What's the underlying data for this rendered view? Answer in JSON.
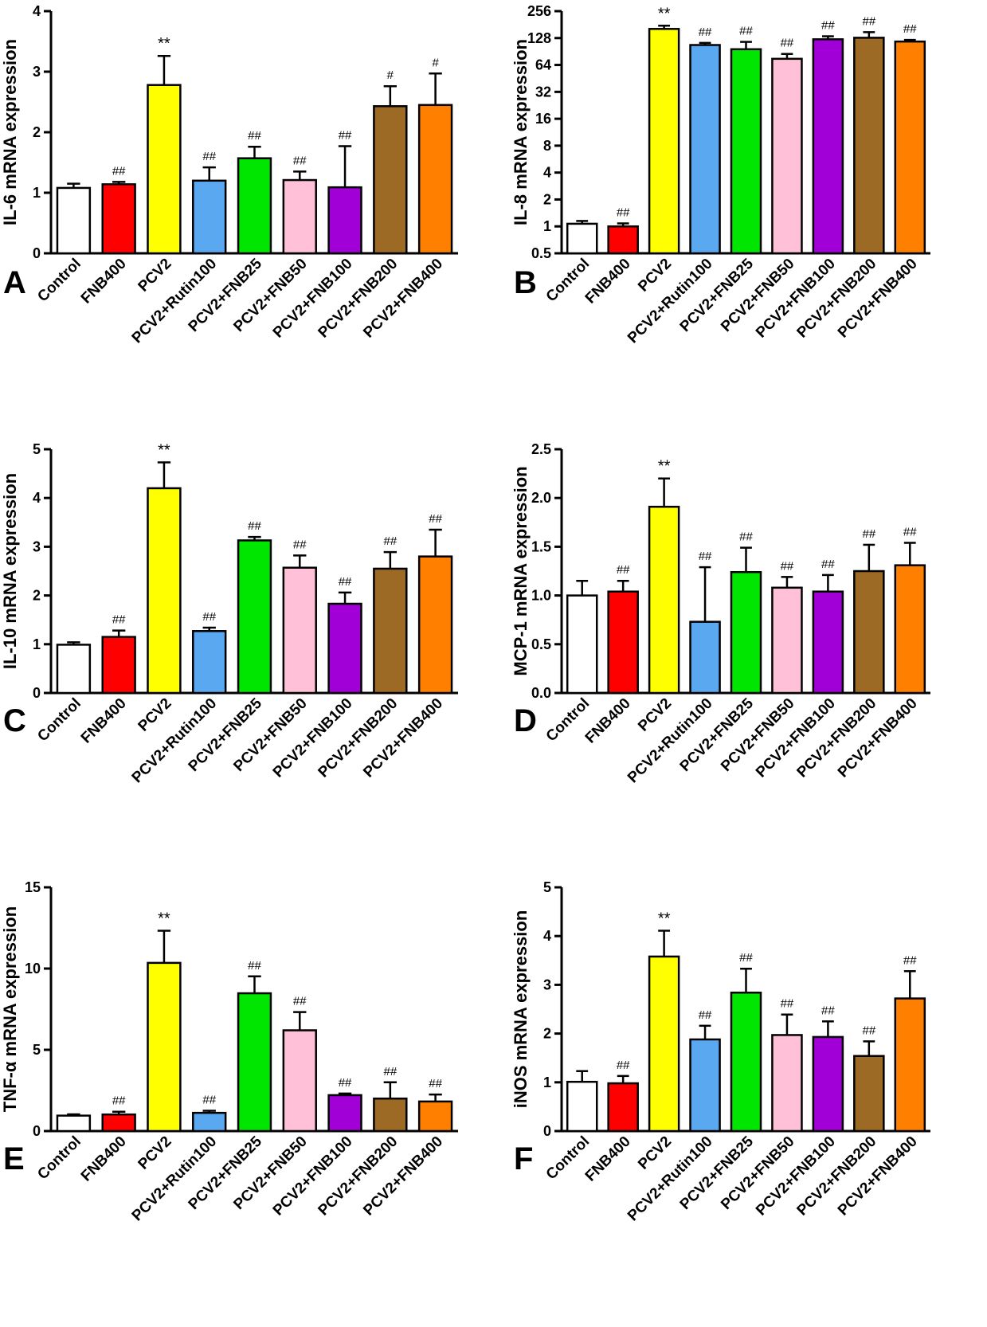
{
  "chart_data": [
    {
      "panel": "A",
      "type": "bar",
      "ylabel": "IL-6 mRNA expression",
      "scale": "linear",
      "ylim": [
        0,
        4
      ],
      "yticks": [
        "0",
        "1",
        "2",
        "3",
        "4"
      ],
      "categories": [
        "Control",
        "FNB400",
        "PCV2",
        "PCV2+Rutin100",
        "PCV2+FNB25",
        "PCV2+FNB50",
        "PCV2+FNB100",
        "PCV2+FNB200",
        "PCV2+FNB400"
      ],
      "values": [
        1.08,
        1.14,
        2.78,
        1.2,
        1.57,
        1.21,
        1.09,
        2.43,
        2.45
      ],
      "errors": [
        0.07,
        0.04,
        0.48,
        0.22,
        0.19,
        0.14,
        0.68,
        0.33,
        0.52
      ],
      "significance": [
        "",
        "##",
        "**",
        "##",
        "##",
        "##",
        "##",
        "#",
        "#"
      ],
      "colors": [
        "#ffffff",
        "#ff0000",
        "#ffff00",
        "#5aa9f0",
        "#00e600",
        "#ffc0d8",
        "#a100d6",
        "#9c6a24",
        "#ff8000"
      ]
    },
    {
      "panel": "B",
      "type": "bar",
      "ylabel": "IL-8 mRNA expression",
      "scale": "log2",
      "ylim": [
        0.5,
        256
      ],
      "yticks": [
        "0.5",
        "1",
        "2",
        "4",
        "8",
        "16",
        "32",
        "64",
        "128",
        "256"
      ],
      "categories": [
        "Control",
        "FNB400",
        "PCV2",
        "PCV2+Rutin100",
        "PCV2+FNB25",
        "PCV2+FNB50",
        "PCV2+FNB100",
        "PCV2+FNB200",
        "PCV2+FNB400"
      ],
      "values": [
        1.07,
        1.0,
        162,
        107,
        96,
        75,
        124,
        129,
        117
      ],
      "errors": [
        0.08,
        0.08,
        14,
        6,
        20,
        10,
        10,
        20,
        5
      ],
      "significance": [
        "",
        "##",
        "**",
        "##",
        "##",
        "##",
        "##",
        "##",
        "##"
      ],
      "colors": [
        "#ffffff",
        "#ff0000",
        "#ffff00",
        "#5aa9f0",
        "#00e600",
        "#ffc0d8",
        "#a100d6",
        "#9c6a24",
        "#ff8000"
      ]
    },
    {
      "panel": "C",
      "type": "bar",
      "ylabel": "IL-10 mRNA expression",
      "scale": "linear",
      "ylim": [
        0,
        5
      ],
      "yticks": [
        "0",
        "1",
        "2",
        "3",
        "4",
        "5"
      ],
      "categories": [
        "Control",
        "FNB400",
        "PCV2",
        "PCV2+Rutin100",
        "PCV2+FNB25",
        "PCV2+FNB50",
        "PCV2+FNB100",
        "PCV2+FNB200",
        "PCV2+FNB400"
      ],
      "values": [
        0.99,
        1.15,
        4.2,
        1.27,
        3.13,
        2.57,
        1.83,
        2.55,
        2.8
      ],
      "errors": [
        0.05,
        0.13,
        0.53,
        0.07,
        0.07,
        0.25,
        0.23,
        0.34,
        0.55
      ],
      "significance": [
        "",
        "##",
        "**",
        "##",
        "##",
        "##",
        "##",
        "##",
        "##"
      ],
      "colors": [
        "#ffffff",
        "#ff0000",
        "#ffff00",
        "#5aa9f0",
        "#00e600",
        "#ffc0d8",
        "#a100d6",
        "#9c6a24",
        "#ff8000"
      ]
    },
    {
      "panel": "D",
      "type": "bar",
      "ylabel": "MCP-1 mRNA expression",
      "scale": "linear",
      "ylim": [
        0,
        2.5
      ],
      "yticks": [
        "0.0",
        "0.5",
        "1.0",
        "1.5",
        "2.0",
        "2.5"
      ],
      "categories": [
        "Control",
        "FNB400",
        "PCV2",
        "PCV2+Rutin100",
        "PCV2+FNB25",
        "PCV2+FNB50",
        "PCV2+FNB100",
        "PCV2+FNB200",
        "PCV2+FNB400"
      ],
      "values": [
        1.0,
        1.04,
        1.91,
        0.73,
        1.24,
        1.08,
        1.04,
        1.25,
        1.31
      ],
      "errors": [
        0.15,
        0.11,
        0.29,
        0.56,
        0.25,
        0.11,
        0.17,
        0.27,
        0.23
      ],
      "significance": [
        "",
        "##",
        "**",
        "##",
        "##",
        "##",
        "##",
        "##",
        "##"
      ],
      "colors": [
        "#ffffff",
        "#ff0000",
        "#ffff00",
        "#5aa9f0",
        "#00e600",
        "#ffc0d8",
        "#a100d6",
        "#9c6a24",
        "#ff8000"
      ]
    },
    {
      "panel": "E",
      "type": "bar",
      "ylabel": "TNF-α mRNA expression",
      "scale": "linear",
      "ylim": [
        0,
        15
      ],
      "yticks": [
        "0",
        "5",
        "10",
        "15"
      ],
      "categories": [
        "Control",
        "FNB400",
        "PCV2",
        "PCV2+Rutin100",
        "PCV2+FNB25",
        "PCV2+FNB50",
        "PCV2+FNB100",
        "PCV2+FNB200",
        "PCV2+FNB400"
      ],
      "values": [
        0.95,
        1.02,
        10.35,
        1.12,
        8.48,
        6.2,
        2.21,
        2.0,
        1.82
      ],
      "errors": [
        0.08,
        0.17,
        1.98,
        0.13,
        1.04,
        1.12,
        0.1,
        1.0,
        0.43
      ],
      "significance": [
        "",
        "##",
        "**",
        "##",
        "##",
        "##",
        "##",
        "##",
        "##"
      ],
      "colors": [
        "#ffffff",
        "#ff0000",
        "#ffff00",
        "#5aa9f0",
        "#00e600",
        "#ffc0d8",
        "#a100d6",
        "#9c6a24",
        "#ff8000"
      ]
    },
    {
      "panel": "F",
      "type": "bar",
      "ylabel": "iNOS mRNA expression",
      "scale": "linear",
      "ylim": [
        0,
        5
      ],
      "yticks": [
        "0",
        "1",
        "2",
        "3",
        "4",
        "5"
      ],
      "categories": [
        "Control",
        "FNB400",
        "PCV2",
        "PCV2+Rutin100",
        "PCV2+FNB25",
        "PCV2+FNB50",
        "PCV2+FNB100",
        "PCV2+FNB200",
        "PCV2+FNB400"
      ],
      "values": [
        1.01,
        0.98,
        3.58,
        1.88,
        2.84,
        1.97,
        1.93,
        1.54,
        2.72
      ],
      "errors": [
        0.22,
        0.15,
        0.53,
        0.28,
        0.49,
        0.42,
        0.32,
        0.3,
        0.56
      ],
      "significance": [
        "",
        "##",
        "**",
        "##",
        "##",
        "##",
        "##",
        "##",
        "##"
      ],
      "colors": [
        "#ffffff",
        "#ff0000",
        "#ffff00",
        "#5aa9f0",
        "#00e600",
        "#ffc0d8",
        "#a100d6",
        "#9c6a24",
        "#ff8000"
      ]
    }
  ]
}
